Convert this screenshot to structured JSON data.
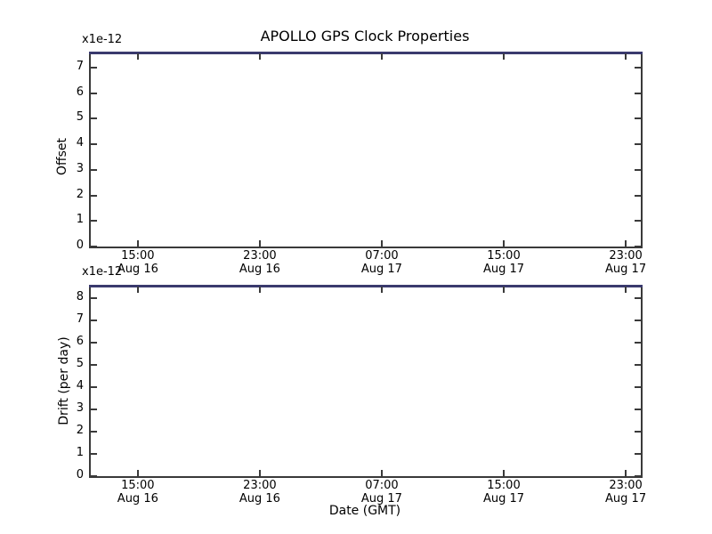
{
  "figure": {
    "title": "APOLLO GPS Clock Properties",
    "xlabel": "Date (GMT)",
    "background_color": "#ffffff",
    "axis_color": "#3a3a3a",
    "top_edge_line_color": "#3a3a6e",
    "text_color": "#000000"
  },
  "chart_data": [
    {
      "type": "line",
      "subplot": "top",
      "title": "APOLLO GPS Clock Properties",
      "ylabel": "Offset",
      "y_offset_text": "x1e-12",
      "yticks": [
        0,
        1,
        2,
        3,
        4,
        5,
        6,
        7
      ],
      "ylim": [
        0,
        7.55
      ],
      "xtick_labels": [
        {
          "time": "15:00",
          "date": "Aug 16"
        },
        {
          "time": "23:00",
          "date": "Aug 16"
        },
        {
          "time": "07:00",
          "date": "Aug 17"
        },
        {
          "time": "15:00",
          "date": "Aug 17"
        },
        {
          "time": "23:00",
          "date": "Aug 17"
        }
      ],
      "xtick_pos": [
        0.0855,
        0.3073,
        0.529,
        0.7508,
        0.9726
      ],
      "series": [],
      "grid": false,
      "legend": null,
      "note": "plot area empty; dark blue line along top axis edge"
    },
    {
      "type": "line",
      "subplot": "bottom",
      "ylabel": "Drift (per day)",
      "xlabel": "Date (GMT)",
      "y_offset_text": "x1e-12",
      "yticks": [
        0,
        1,
        2,
        3,
        4,
        5,
        6,
        7,
        8
      ],
      "ylim": [
        0,
        8.5
      ],
      "xtick_labels": [
        {
          "time": "15:00",
          "date": "Aug 16"
        },
        {
          "time": "23:00",
          "date": "Aug 16"
        },
        {
          "time": "07:00",
          "date": "Aug 17"
        },
        {
          "time": "15:00",
          "date": "Aug 17"
        },
        {
          "time": "23:00",
          "date": "Aug 17"
        }
      ],
      "xtick_pos": [
        0.0855,
        0.3073,
        0.529,
        0.7508,
        0.9726
      ],
      "series": [],
      "grid": false,
      "legend": null,
      "note": "plot area empty; dark blue line along top axis edge"
    }
  ]
}
